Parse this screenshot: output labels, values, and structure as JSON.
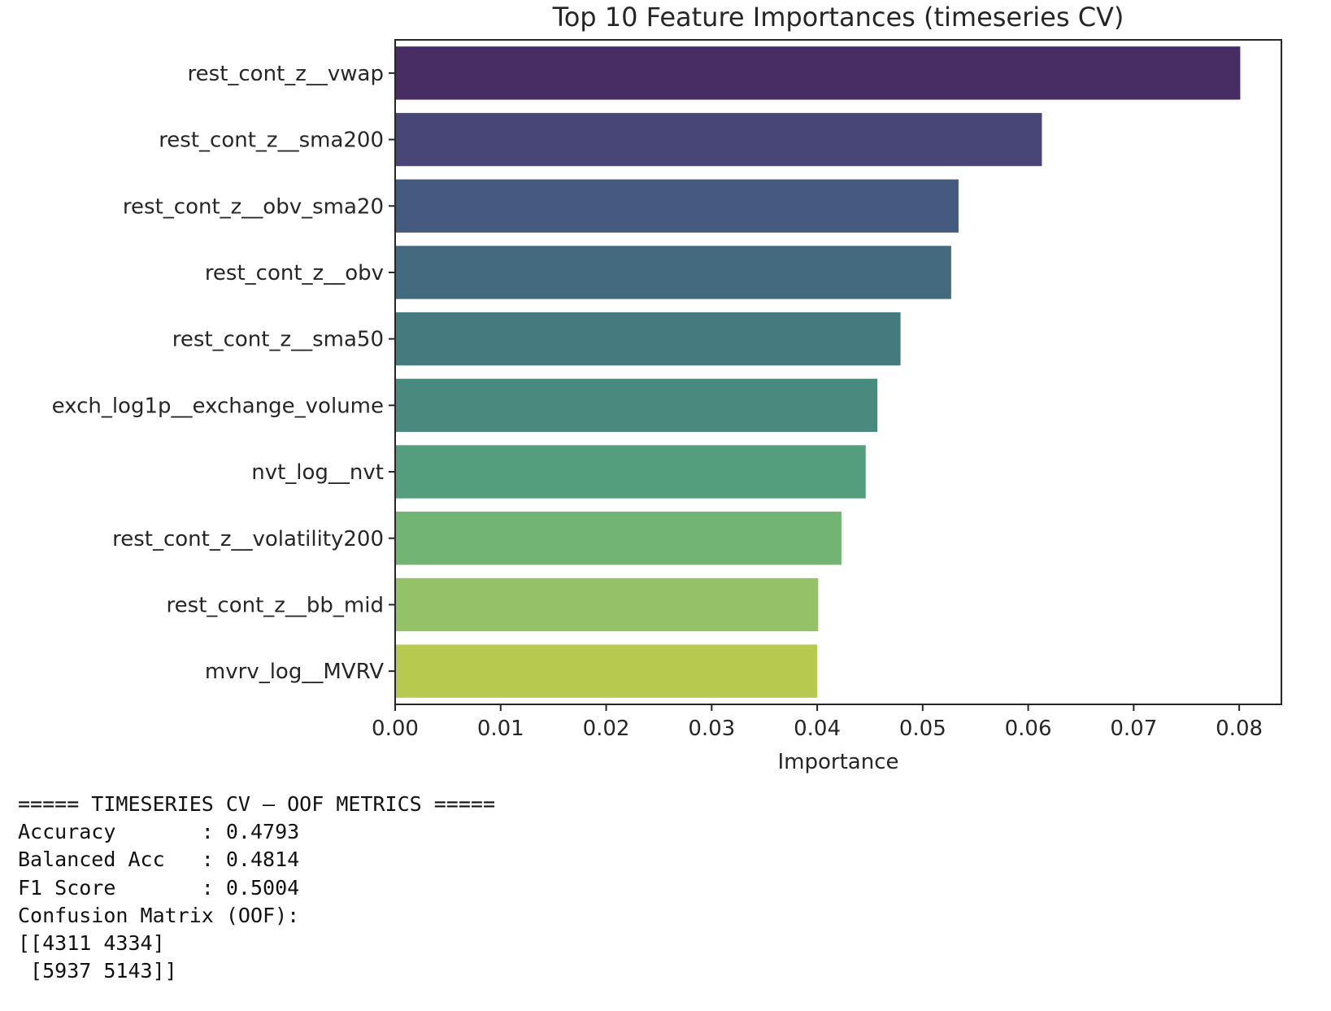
{
  "chart_data": {
    "type": "bar",
    "orientation": "horizontal",
    "title": "Top 10 Feature Importances (timeseries CV)",
    "xlabel": "Importance",
    "ylabel": "",
    "xlim": [
      0,
      0.084
    ],
    "xticks": [
      "0.00",
      "0.01",
      "0.02",
      "0.03",
      "0.04",
      "0.05",
      "0.06",
      "0.07",
      "0.08"
    ],
    "grid": false,
    "legend": "none",
    "categories": [
      "rest_cont_z__vwap",
      "rest_cont_z__sma200",
      "rest_cont_z__obv_sma20",
      "rest_cont_z__obv",
      "rest_cont_z__sma50",
      "exch_log1p__exchange_volume",
      "nvt_log__nvt",
      "rest_cont_z__volatility200",
      "rest_cont_z__bb_mid",
      "mvrv_log__MVRV"
    ],
    "values": [
      0.0801,
      0.0613,
      0.0534,
      0.0527,
      0.0479,
      0.0457,
      0.0446,
      0.0423,
      0.0401,
      0.04
    ],
    "colors": [
      "#472d64",
      "#484677",
      "#455a7f",
      "#446a7f",
      "#457a7e",
      "#488a7e",
      "#549d7d",
      "#72b473",
      "#95c168",
      "#b8c950"
    ]
  },
  "metrics": {
    "lines": [
      "===== TIMESERIES CV – OOF METRICS =====",
      "Accuracy       : 0.4793",
      "Balanced Acc   : 0.4814",
      "F1 Score       : 0.5004",
      "Confusion Matrix (OOF):",
      "[[4311 4334]",
      " [5937 5143]]"
    ]
  }
}
